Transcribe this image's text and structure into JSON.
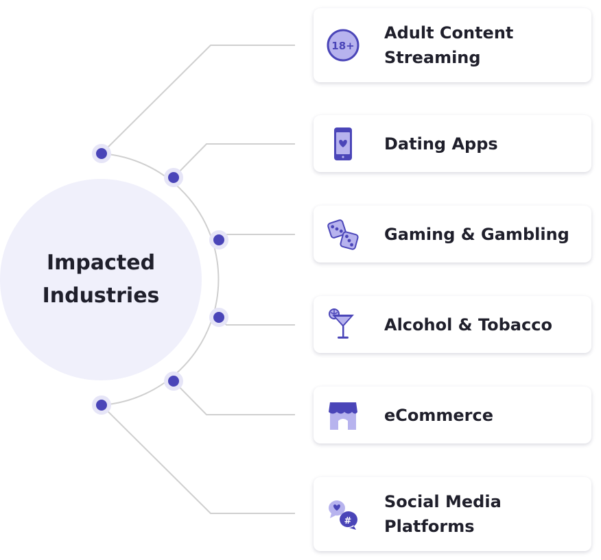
{
  "hub": {
    "title": "Impacted Industries"
  },
  "colors": {
    "accent": "#4a45b8",
    "accent_light": "#b7b3ee",
    "hub_fill": "#f0f0fb",
    "line": "#cfcfcf"
  },
  "industries": [
    {
      "label": "Adult Content Streaming",
      "icon": "age-18-plus-icon"
    },
    {
      "label": "Dating Apps",
      "icon": "phone-heart-icon"
    },
    {
      "label": "Gaming & Gambling",
      "icon": "dice-icon"
    },
    {
      "label": "Alcohol & Tobacco",
      "icon": "cocktail-icon"
    },
    {
      "label": "eCommerce",
      "icon": "storefront-icon"
    },
    {
      "label": "Social Media Platforms",
      "icon": "chat-bubbles-icon"
    }
  ]
}
